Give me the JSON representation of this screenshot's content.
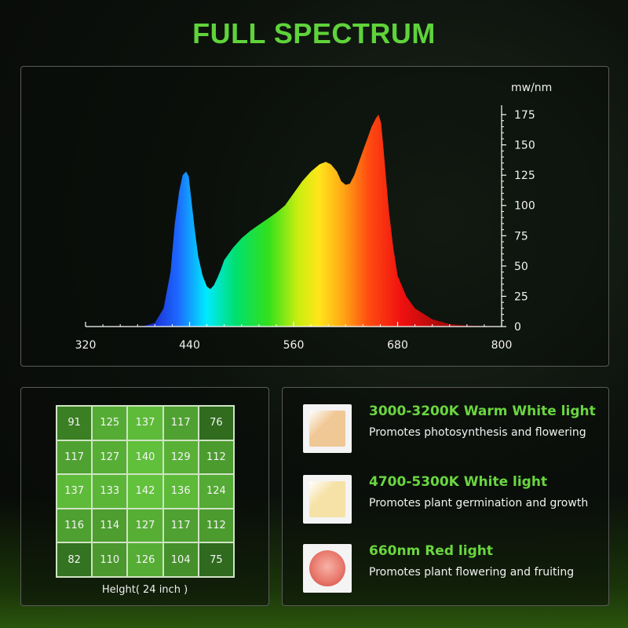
{
  "title": "FULL SPECTRUM",
  "chart_data": {
    "type": "area",
    "title": "",
    "xlabel": "",
    "ylabel": "mw/nm",
    "x_ticks": [
      320,
      440,
      560,
      680,
      800
    ],
    "y_ticks": [
      0,
      25,
      50,
      75,
      100,
      125,
      150,
      175
    ],
    "xlim": [
      320,
      800
    ],
    "ylim": [
      0,
      175
    ],
    "series": [
      {
        "x": [
          385,
          400,
          410,
          418,
          423,
          428,
          432,
          436,
          439,
          442,
          446,
          450,
          455,
          460,
          464,
          468,
          472,
          476,
          480,
          490,
          500,
          510,
          520,
          530,
          540,
          550,
          560,
          570,
          580,
          590,
          597,
          603,
          610,
          615,
          620,
          625,
          630,
          635,
          640,
          645,
          650,
          655,
          658,
          661,
          664,
          667,
          670,
          675,
          680,
          690,
          700,
          720,
          740,
          760,
          780,
          800
        ],
        "y": [
          0,
          3,
          15,
          45,
          85,
          112,
          125,
          128,
          124,
          105,
          80,
          58,
          42,
          33,
          31,
          34,
          40,
          47,
          55,
          65,
          73,
          79,
          84,
          89,
          94,
          100,
          110,
          120,
          128,
          134,
          136,
          134,
          128,
          120,
          117,
          118,
          125,
          135,
          145,
          155,
          165,
          172,
          175,
          168,
          145,
          120,
          95,
          65,
          42,
          25,
          15,
          6,
          2,
          1,
          0.5,
          0
        ]
      }
    ]
  },
  "ppfd": {
    "rows": [
      [
        "91",
        "125",
        "137",
        "117",
        "76"
      ],
      [
        "117",
        "127",
        "140",
        "129",
        "112"
      ],
      [
        "137",
        "133",
        "142",
        "136",
        "124"
      ],
      [
        "116",
        "114",
        "127",
        "117",
        "112"
      ],
      [
        "82",
        "110",
        "126",
        "104",
        "75"
      ]
    ],
    "caption": "Helght( 24 inch )",
    "cell_color_low": "#2f6a1e",
    "cell_color_high": "#62c23c"
  },
  "leds": [
    {
      "title": "3000-3200K Warm White light",
      "desc": "Promotes photosynthesis and flowering",
      "chip_color": "#f0c896",
      "chip_icon": "warm-white-led-chip-icon"
    },
    {
      "title": "4700-5300K White light",
      "desc": "Promotes plant germination and growth",
      "chip_color": "#f6e2a6",
      "chip_icon": "white-led-chip-icon"
    },
    {
      "title": "660nm Red light",
      "desc": "Promotes plant flowering and fruiting",
      "chip_color": "#e97a6e",
      "chip_icon": "red-led-chip-icon"
    }
  ],
  "colors": {
    "accent": "#5fd33a",
    "panel_border": "#5a5a5a"
  }
}
